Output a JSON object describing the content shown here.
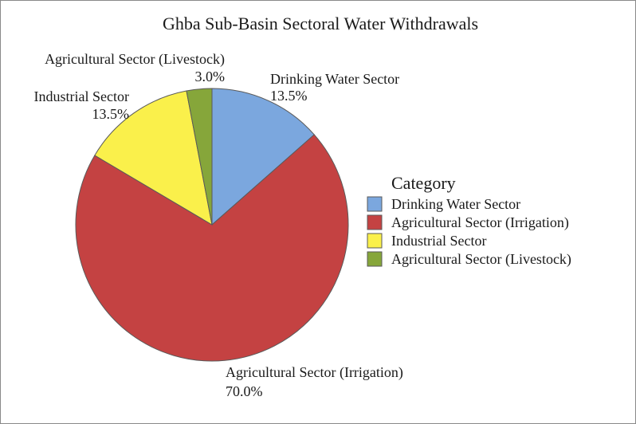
{
  "chart_data": {
    "type": "pie",
    "title": "Ghba Sub-Basin Sectoral Water Withdrawals",
    "legend_title": "Category",
    "legend_position": "right",
    "slices": [
      {
        "name": "Drinking Water Sector",
        "value": 13.5,
        "label": "13.5%",
        "color": "#7ba7de"
      },
      {
        "name": "Agricultural Sector (Irrigation)",
        "value": 70.0,
        "label": "70.0%",
        "color": "#c44242"
      },
      {
        "name": "Industrial Sector",
        "value": 13.5,
        "label": "13.5%",
        "color": "#faf04b"
      },
      {
        "name": "Agricultural Sector (Livestock)",
        "value": 3.0,
        "label": "3.0%",
        "color": "#86a63a"
      }
    ]
  }
}
